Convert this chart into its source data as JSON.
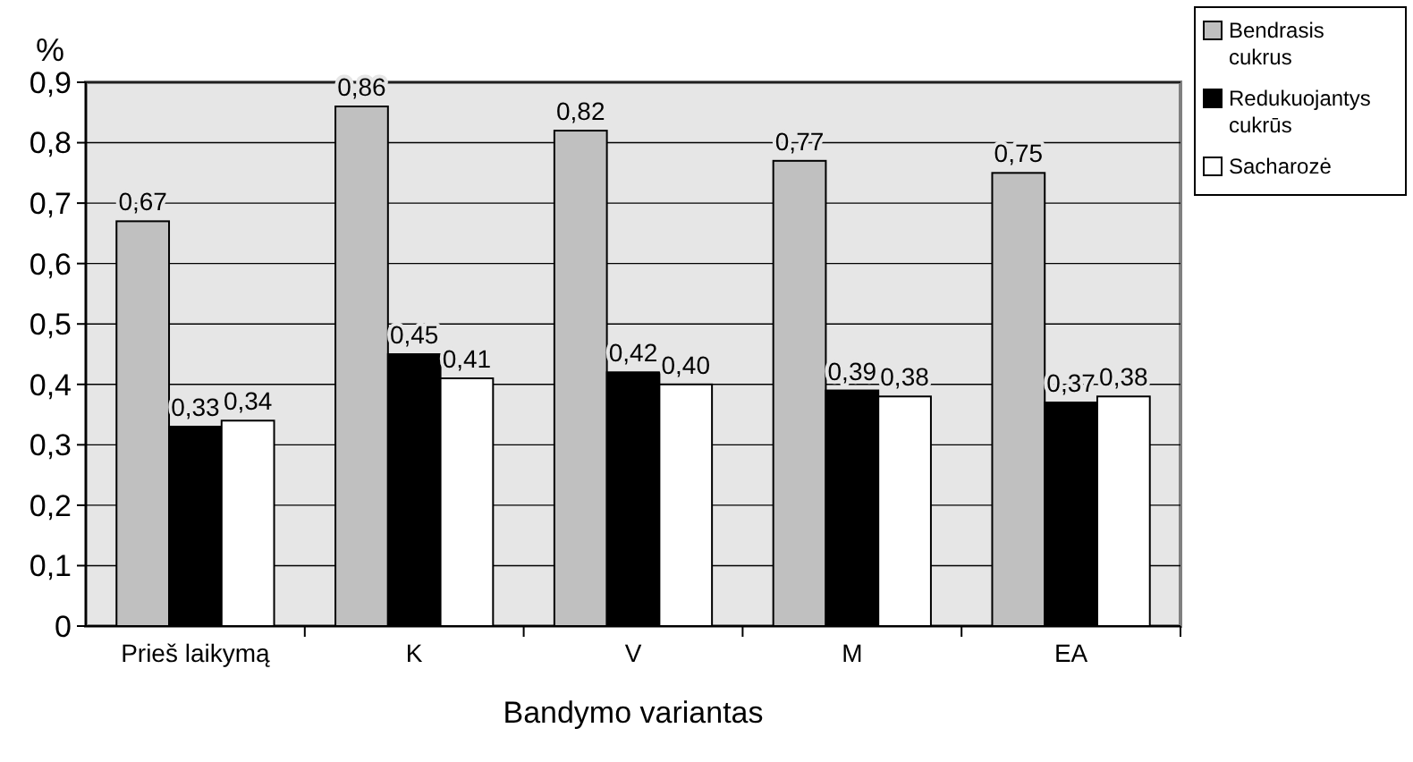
{
  "chart_data": {
    "type": "bar",
    "ylabel": "%",
    "xlabel": "Bandymo variantas",
    "categories": [
      "Prieš laikymą",
      "K",
      "V",
      "M",
      "EA"
    ],
    "series": [
      {
        "name": "Bendrasis cukrus",
        "color": "#c0c0c0",
        "values": [
          0.67,
          0.86,
          0.82,
          0.77,
          0.75
        ],
        "value_labels": [
          "0,67",
          "0,86",
          "0,82",
          "0,77",
          "0,75"
        ]
      },
      {
        "name": "Redukuojantys cukrūs",
        "color": "#000000",
        "values": [
          0.33,
          0.45,
          0.42,
          0.39,
          0.37
        ],
        "value_labels": [
          "0,33",
          "0,45",
          "0,42",
          "0,39",
          "0,37"
        ]
      },
      {
        "name": "Sacharozė",
        "color": "#ffffff",
        "values": [
          0.34,
          0.41,
          0.4,
          0.38,
          0.38
        ],
        "value_labels": [
          "0,34",
          "0,41",
          "0,40",
          "0,38",
          "0,38"
        ]
      }
    ],
    "ylim": [
      0,
      0.9
    ],
    "yticks": [
      0,
      {
        "value": 0.1,
        "label": "0,1"
      },
      {
        "value": 0.2,
        "label": "0,2"
      },
      {
        "value": 0.3,
        "label": "0,3"
      },
      {
        "value": 0.4,
        "label": "0,4"
      },
      {
        "value": 0.5,
        "label": "0,5"
      },
      {
        "value": 0.6,
        "label": "0,6"
      },
      {
        "value": 0.7,
        "label": "0,7"
      },
      {
        "value": 0.8,
        "label": "0,8"
      },
      {
        "value": 0.9,
        "label": "0,9"
      }
    ],
    "grid": "y",
    "legend": "top right"
  }
}
